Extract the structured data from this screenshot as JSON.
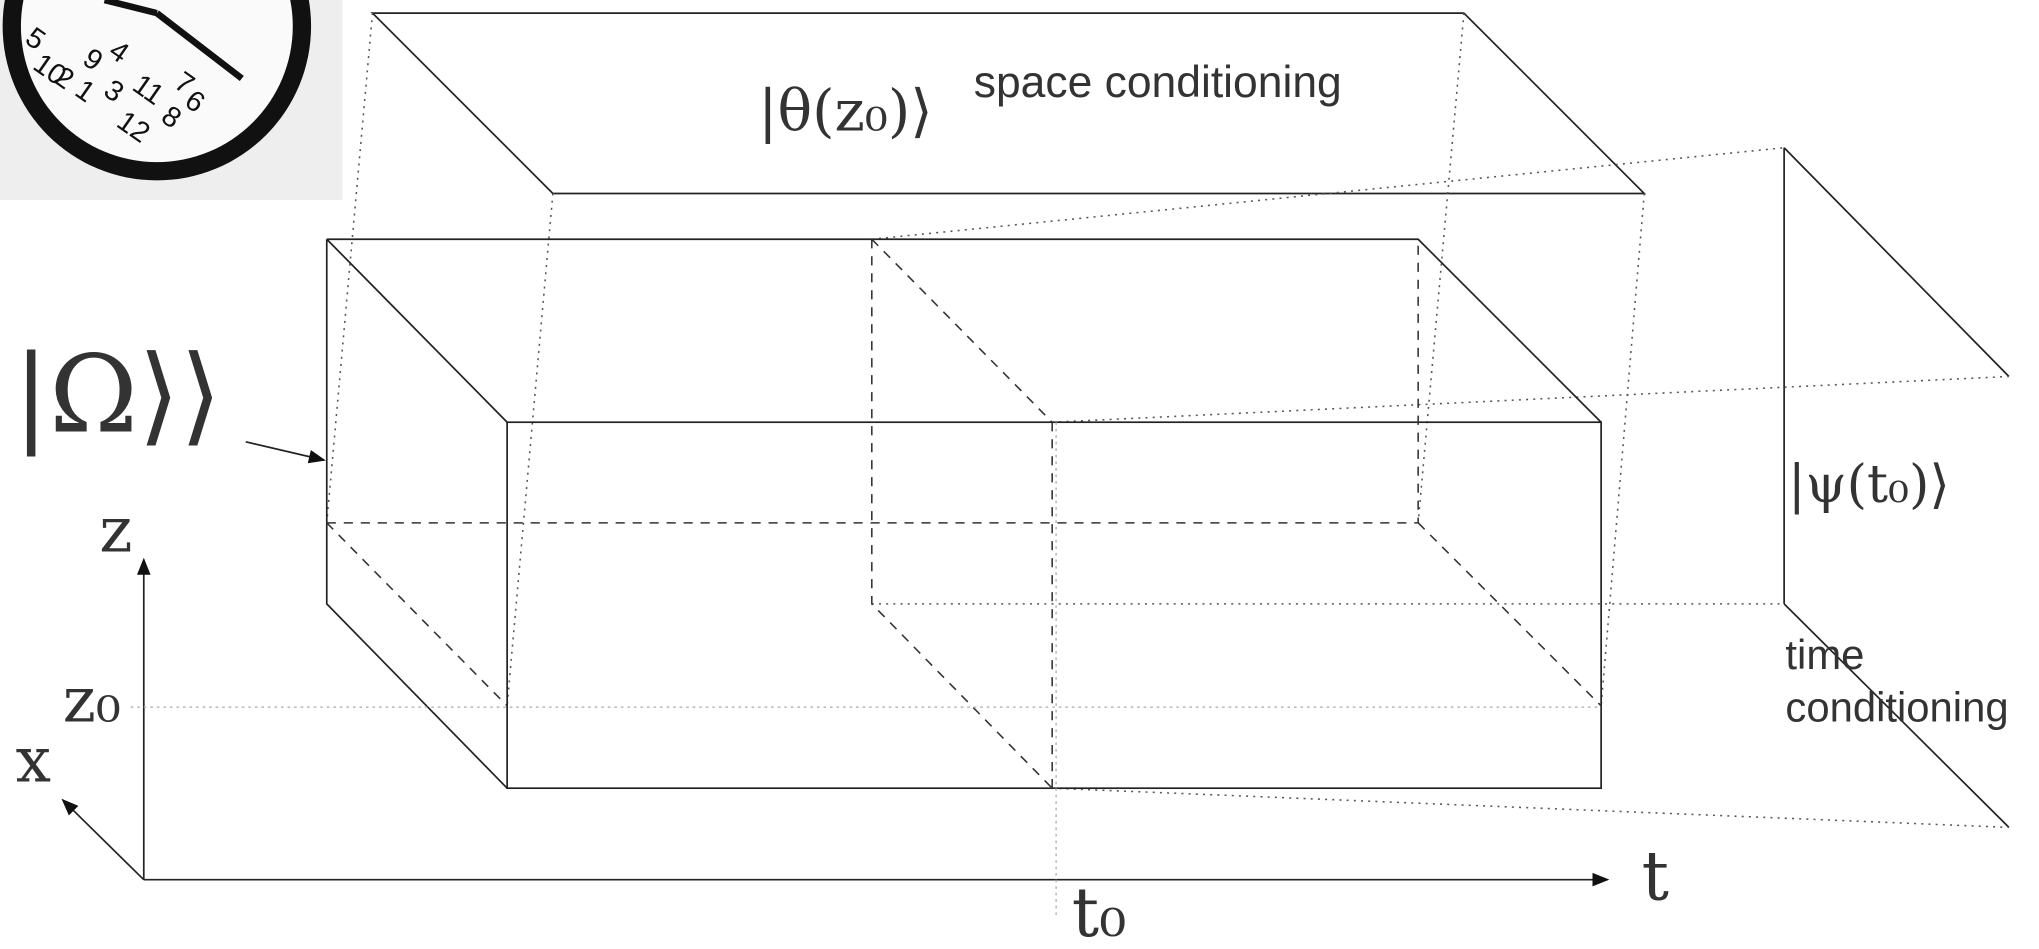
{
  "clock": {
    "numbers": [
      "5",
      "10",
      "2",
      "1",
      "9",
      "4",
      "3",
      "11",
      "7",
      "6",
      "12",
      "8"
    ]
  },
  "labels": {
    "theta": "|θ(z₀)⟩",
    "space": "space  conditioning",
    "omega": "|Ω⟩⟩",
    "psi": "|ψ(t₀)⟩",
    "time": [
      "time",
      "conditioning"
    ],
    "z": "z",
    "z0": "z₀",
    "x": "x",
    "t": "t",
    "t0": "t₀"
  }
}
